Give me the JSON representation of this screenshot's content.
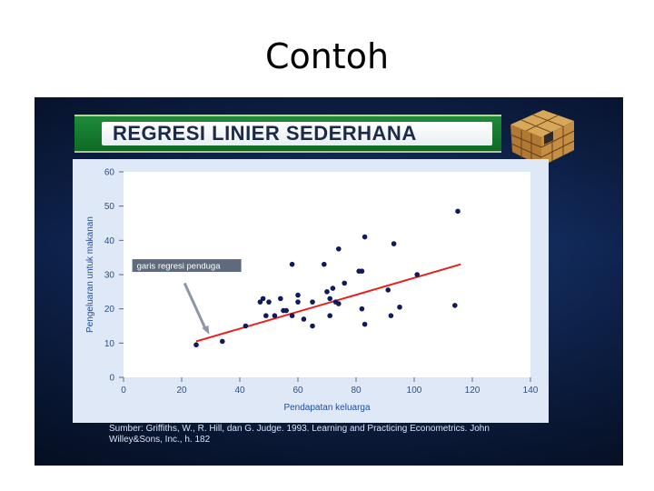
{
  "slide": {
    "title": "Contoh"
  },
  "banner": {
    "title": "REGRESI LINIER SEDERHANA"
  },
  "chart_data": {
    "type": "scatter",
    "title": "",
    "xlabel": "Pendapatan keluarga",
    "ylabel": "Pengeluaran untuk makanan",
    "xlim": [
      0,
      140
    ],
    "ylim": [
      0,
      60
    ],
    "xticks": [
      "0",
      "20",
      "40",
      "60",
      "80",
      "100",
      "120",
      "140"
    ],
    "yticks": [
      "0",
      "10",
      "20",
      "30",
      "40",
      "50",
      "60"
    ],
    "grid": false,
    "points": [
      [
        25,
        9.5
      ],
      [
        34,
        10.5
      ],
      [
        42,
        15
      ],
      [
        47,
        22
      ],
      [
        48,
        23
      ],
      [
        49,
        18
      ],
      [
        50,
        22
      ],
      [
        52,
        18
      ],
      [
        54,
        23
      ],
      [
        55,
        19.5
      ],
      [
        56,
        19.5
      ],
      [
        58,
        33
      ],
      [
        58,
        18
      ],
      [
        60,
        22
      ],
      [
        60,
        24
      ],
      [
        62,
        17
      ],
      [
        65,
        15
      ],
      [
        65,
        22
      ],
      [
        69,
        33
      ],
      [
        70,
        25
      ],
      [
        71,
        18
      ],
      [
        71,
        23
      ],
      [
        72,
        26
      ],
      [
        73,
        22
      ],
      [
        74,
        37.5
      ],
      [
        74,
        21.5
      ],
      [
        76,
        27.5
      ],
      [
        81,
        31
      ],
      [
        82,
        20
      ],
      [
        82,
        31
      ],
      [
        83,
        15.5
      ],
      [
        83,
        41
      ],
      [
        91,
        25.5
      ],
      [
        92,
        18
      ],
      [
        93,
        39
      ],
      [
        95,
        20.5
      ],
      [
        101,
        30
      ],
      [
        114,
        21
      ],
      [
        115,
        48.5
      ]
    ],
    "regression_line": {
      "x": [
        25,
        116
      ],
      "y": [
        10.5,
        33
      ],
      "color": "#e8201a"
    },
    "annotation": "garis regresi penduga",
    "point_color": "#101a5a",
    "source": "Sumber: Griffiths, W., R. Hill, dan G. Judge. 1993. Learning and Practicing Econometrics. John Willey&Sons, Inc., h. 182"
  }
}
